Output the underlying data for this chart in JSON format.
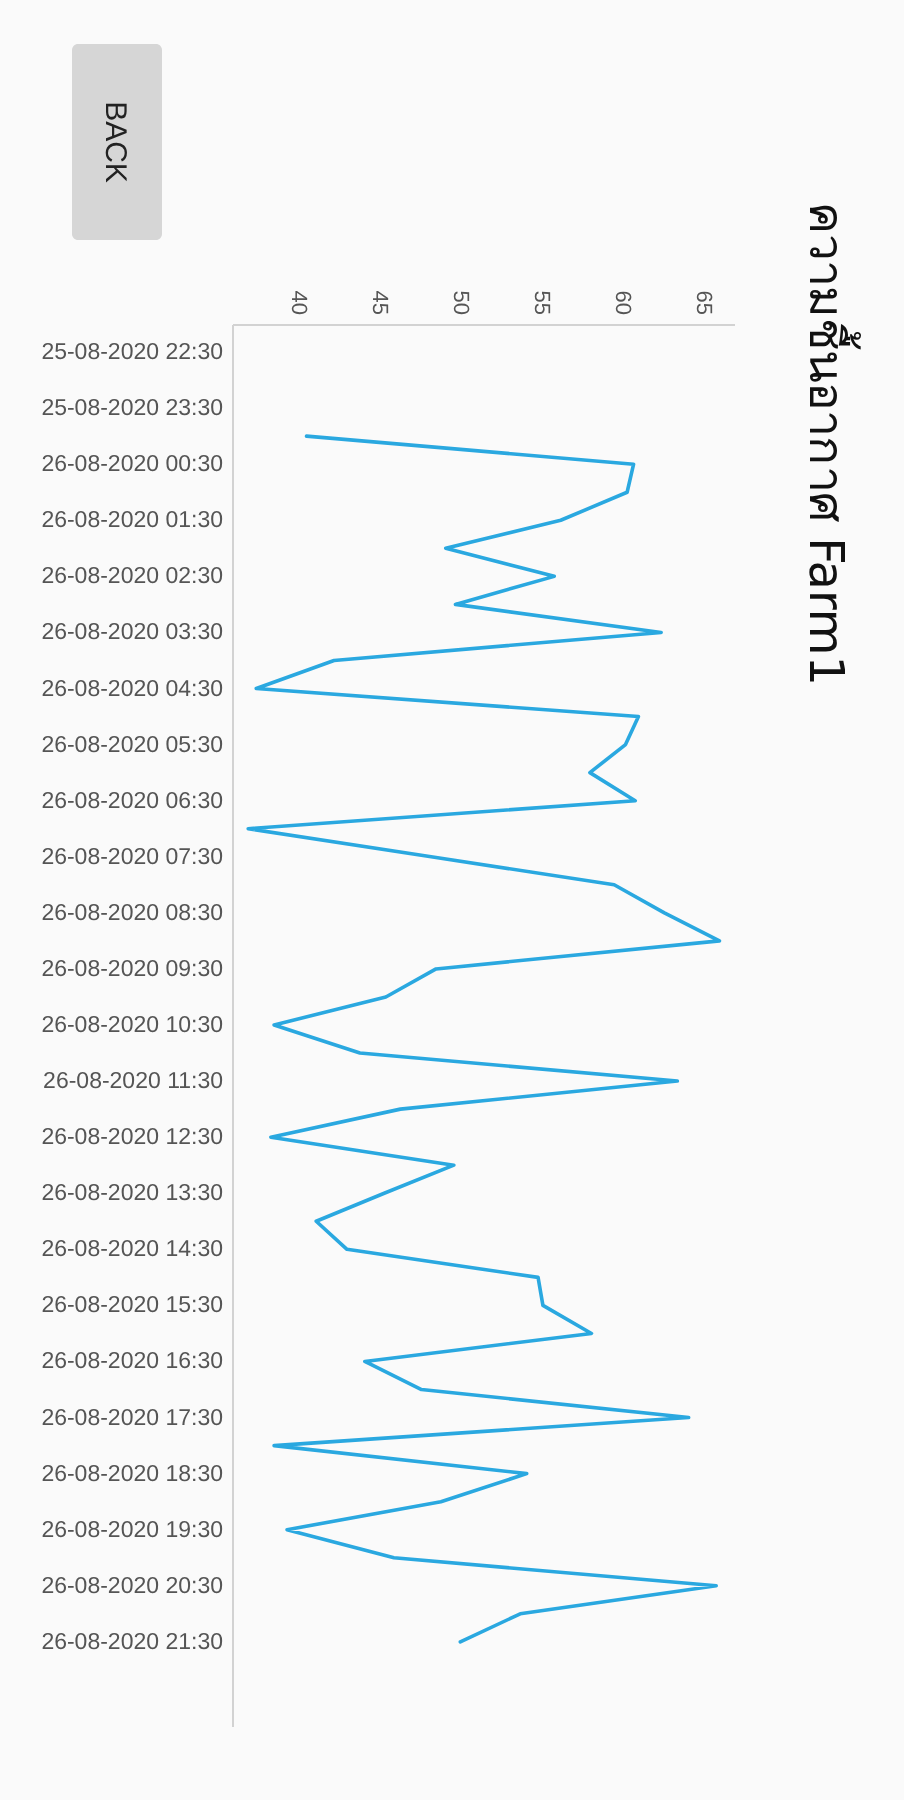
{
  "chart_data": {
    "type": "line",
    "orientation": "horizontal",
    "title": "ความชื้นอากาศ Farm1",
    "annotations": [
      "BACK"
    ],
    "categories": [
      "25-08-2020 22:30",
      null,
      "25-08-2020 23:30",
      null,
      "26-08-2020 00:30",
      null,
      "26-08-2020 01:30",
      null,
      "26-08-2020 02:30",
      null,
      "26-08-2020 03:30",
      null,
      "26-08-2020 04:30",
      null,
      "26-08-2020 05:30",
      null,
      "26-08-2020 06:30",
      null,
      "26-08-2020 07:30",
      null,
      "26-08-2020 08:30",
      null,
      "26-08-2020 09:30",
      null,
      "26-08-2020 10:30",
      null,
      "26-08-2020 11:30",
      null,
      "26-08-2020 12:30",
      null,
      "26-08-2020 13:30",
      null,
      "26-08-2020 14:30",
      null,
      "26-08-2020 15:30",
      null,
      "26-08-2020 16:30",
      null,
      "26-08-2020 17:30",
      null,
      "26-08-2020 18:30",
      null,
      "26-08-2020 19:30",
      null,
      "26-08-2020 20:30",
      null,
      "26-08-2020 21:30"
    ],
    "series": [
      {
        "color": "#2aa8e0",
        "values": [
          null,
          null,
          null,
          40.6,
          60.8,
          60.4,
          56.3,
          49.2,
          55.9,
          49.8,
          62.5,
          42.3,
          37.5,
          61.1,
          60.3,
          58.1,
          60.9,
          37.0,
          48.3,
          59.6,
          62.7,
          66.1,
          48.6,
          45.5,
          38.6,
          43.9,
          63.5,
          46.4,
          38.4,
          49.7,
          45.4,
          41.2,
          43.1,
          54.9,
          55.2,
          58.2,
          44.2,
          47.7,
          64.2,
          38.6,
          54.2,
          48.9,
          39.4,
          46.0,
          65.9,
          53.8,
          50.1
        ]
      }
    ],
    "xlim": [
      36,
      67
    ],
    "xticks": [
      40,
      45,
      50,
      55,
      60,
      65
    ]
  }
}
